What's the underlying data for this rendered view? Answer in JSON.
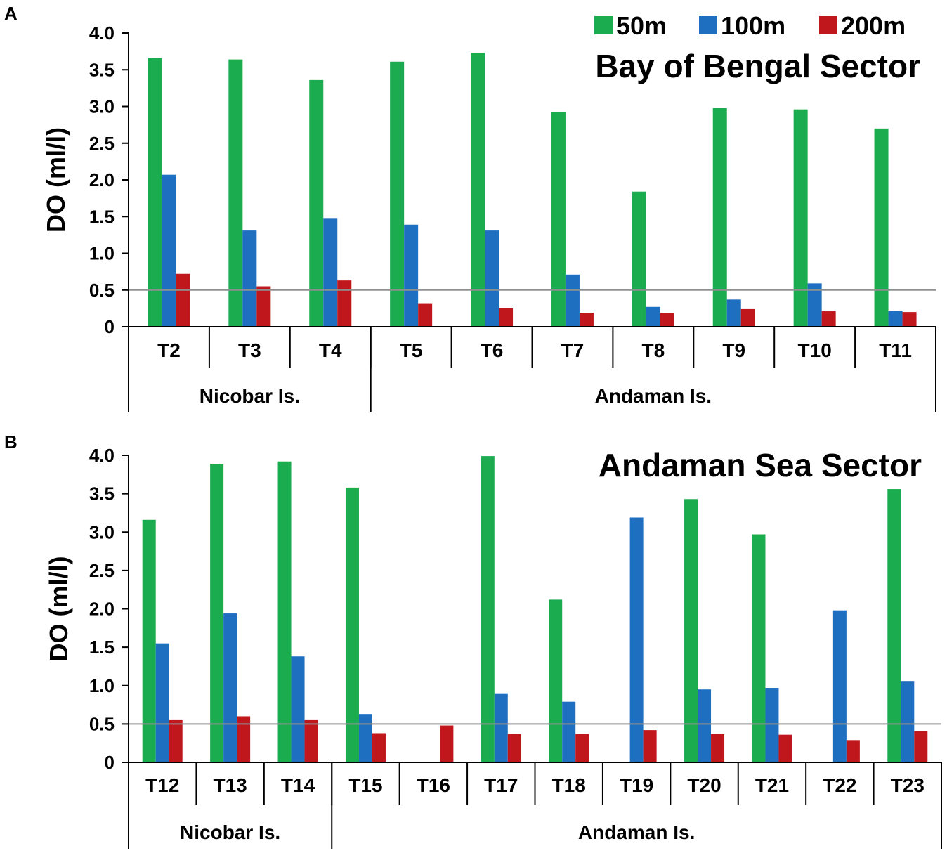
{
  "colors": {
    "s50": "#1aac4e",
    "s100": "#1f6fc1",
    "s200": "#c0171c",
    "axis": "#000000",
    "threshold": "#909090"
  },
  "legend": [
    {
      "name": "50m",
      "color": "#1aac4e"
    },
    {
      "name": "100m",
      "color": "#1f6fc1"
    },
    {
      "name": "200m",
      "color": "#c0171c"
    }
  ],
  "chart_data": [
    {
      "panel_label": "A",
      "type": "bar",
      "title": "Bay of Bengal Sector",
      "ylabel": "DO (ml/l)",
      "ylim": [
        0,
        4.0
      ],
      "yticks": [
        "0",
        "0.5",
        "1.0",
        "1.5",
        "2.0",
        "2.5",
        "3.0",
        "3.5",
        "4.0"
      ],
      "threshold": 0.5,
      "categories": [
        "T2",
        "T3",
        "T4",
        "T5",
        "T6",
        "T7",
        "T8",
        "T9",
        "T10",
        "T11"
      ],
      "groups": [
        {
          "label": "Nicobar Is.",
          "count": 3
        },
        {
          "label": "Andaman Is.",
          "count": 7
        }
      ],
      "series": [
        {
          "name": "50m",
          "values": [
            3.66,
            3.64,
            3.36,
            3.61,
            3.73,
            2.92,
            1.84,
            2.98,
            2.96,
            2.7
          ]
        },
        {
          "name": "100m",
          "values": [
            2.07,
            1.31,
            1.48,
            1.39,
            1.31,
            0.71,
            0.27,
            0.37,
            0.59,
            0.22
          ]
        },
        {
          "name": "200m",
          "values": [
            0.72,
            0.55,
            0.63,
            0.32,
            0.25,
            0.19,
            0.19,
            0.24,
            0.21,
            0.2
          ]
        }
      ]
    },
    {
      "panel_label": "B",
      "type": "bar",
      "title": "Andaman Sea Sector",
      "ylabel": "DO (ml/l)",
      "ylim": [
        0,
        4.0
      ],
      "yticks": [
        "0",
        "0.5",
        "1.0",
        "1.5",
        "2.0",
        "2.5",
        "3.0",
        "3.5",
        "4.0"
      ],
      "threshold": 0.5,
      "categories": [
        "T12",
        "T13",
        "T14",
        "T15",
        "T16",
        "T17",
        "T18",
        "T19",
        "T20",
        "T21",
        "T22",
        "T23"
      ],
      "groups": [
        {
          "label": "Nicobar Is.",
          "count": 3
        },
        {
          "label": "Andaman Is.",
          "count": 9
        }
      ],
      "series": [
        {
          "name": "50m",
          "values": [
            3.16,
            3.89,
            3.92,
            3.58,
            null,
            3.99,
            2.12,
            null,
            3.43,
            2.97,
            null,
            3.56
          ]
        },
        {
          "name": "100m",
          "values": [
            1.55,
            1.94,
            1.38,
            0.63,
            null,
            0.9,
            0.79,
            3.19,
            0.95,
            0.97,
            1.98,
            1.06
          ]
        },
        {
          "name": "200m",
          "values": [
            0.55,
            0.6,
            0.55,
            0.38,
            0.48,
            0.37,
            0.37,
            0.42,
            0.37,
            0.36,
            0.29,
            0.41
          ]
        }
      ]
    }
  ]
}
